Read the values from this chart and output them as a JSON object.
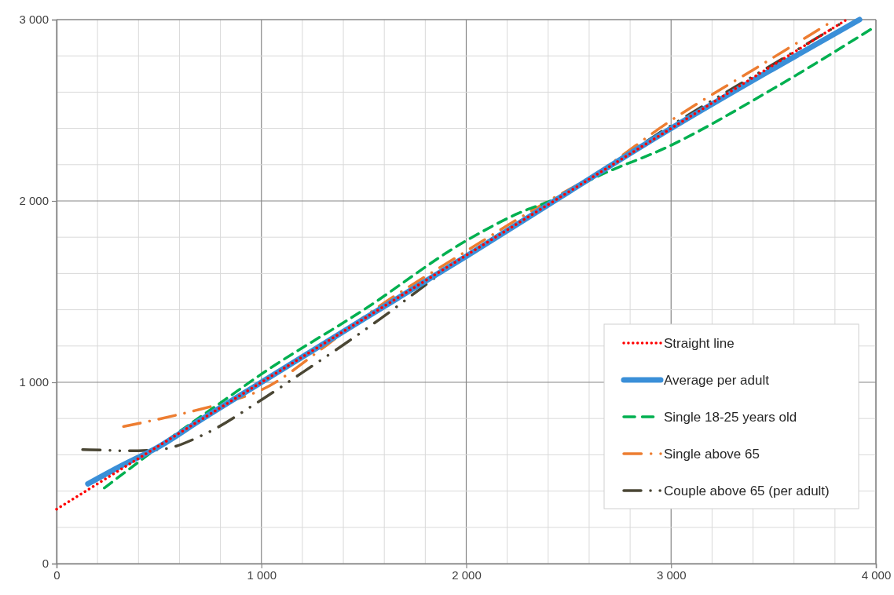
{
  "chart_data": {
    "type": "line",
    "xlim": [
      0,
      4000
    ],
    "ylim": [
      0,
      3000
    ],
    "xticks": [
      0,
      {
        "value": 200,
        "label": null
      },
      {
        "value": 400,
        "label": null
      },
      {
        "value": 600,
        "label": null
      },
      {
        "value": 800,
        "label": null
      },
      {
        "value": 1000,
        "label": "1 000"
      },
      {
        "value": 1200,
        "label": null
      },
      {
        "value": 1400,
        "label": null
      },
      {
        "value": 1600,
        "label": null
      },
      {
        "value": 1800,
        "label": null
      },
      {
        "value": 2000,
        "label": "2 000"
      },
      {
        "value": 2200,
        "label": null
      },
      {
        "value": 2400,
        "label": null
      },
      {
        "value": 2600,
        "label": null
      },
      {
        "value": 2800,
        "label": null
      },
      {
        "value": 3000,
        "label": "3 000"
      },
      {
        "value": 3200,
        "label": null
      },
      {
        "value": 3400,
        "label": null
      },
      {
        "value": 3600,
        "label": null
      },
      {
        "value": 3800,
        "label": null
      },
      {
        "value": 4000,
        "label": "4 000"
      }
    ],
    "yticks": [
      0,
      {
        "value": 200,
        "label": null
      },
      {
        "value": 400,
        "label": null
      },
      {
        "value": 600,
        "label": null
      },
      {
        "value": 800,
        "label": null
      },
      {
        "value": 1000,
        "label": "1 000"
      },
      {
        "value": 1200,
        "label": null
      },
      {
        "value": 1400,
        "label": null
      },
      {
        "value": 1600,
        "label": null
      },
      {
        "value": 1800,
        "label": null
      },
      {
        "value": 2000,
        "label": "2 000"
      },
      {
        "value": 2200,
        "label": null
      },
      {
        "value": 2400,
        "label": null
      },
      {
        "value": 2600,
        "label": null
      },
      {
        "value": 2800,
        "label": null
      },
      {
        "value": 3000,
        "label": "3 000"
      }
    ],
    "grid": true,
    "legend": "bottom right",
    "marker": "none",
    "series": [
      {
        "name": "Straight line",
        "color": "#ff0000",
        "line_style": "dotted",
        "x": [
          0,
          3850
        ],
        "values": [
          300,
          2995
        ]
      },
      {
        "name": "Average per adult",
        "color": "#3a8fd8",
        "line_style": "solid",
        "x": [
          153,
          300,
          500,
          700,
          1000,
          1500,
          2000,
          2500,
          3000,
          3500,
          3920
        ],
        "values": [
          440,
          530,
          645,
          790,
          1000,
          1350,
          1695,
          2050,
          2400,
          2730,
          3000
        ]
      },
      {
        "name": "Single 18-25 years old",
        "color": "#00b050",
        "line_style": "dashed",
        "x": [
          233,
          401,
          504,
          836,
          1000,
          1500,
          2000,
          2255,
          2434,
          2600,
          3000,
          3500,
          4000
        ],
        "values": [
          417,
          561,
          649,
          915,
          1045,
          1400,
          1781,
          1932,
          2012,
          2113,
          2307,
          2620,
          2964
        ]
      },
      {
        "name": "Single above 65",
        "color": "#ed7d31",
        "line_style": "dashdot",
        "x": [
          327,
          644,
          849,
          1000,
          1308,
          1450,
          2000,
          2396,
          2600,
          3000,
          3457,
          3800
        ],
        "values": [
          756,
          835,
          897,
          958,
          1196,
          1319,
          1723,
          1997,
          2127,
          2444,
          2762,
          3000
        ]
      },
      {
        "name": "Couple above 65 (per adult)",
        "color": "#4a4634",
        "line_style": "dashdotdot",
        "x": [
          127,
          229,
          337,
          504,
          721,
          977,
          1207,
          1424,
          1578,
          2000,
          2472,
          3000,
          3457,
          3860
        ],
        "values": [
          629,
          626,
          622,
          629,
          713,
          886,
          1059,
          1225,
          1348,
          1701,
          2026,
          2416,
          2726,
          3000
        ]
      }
    ]
  }
}
